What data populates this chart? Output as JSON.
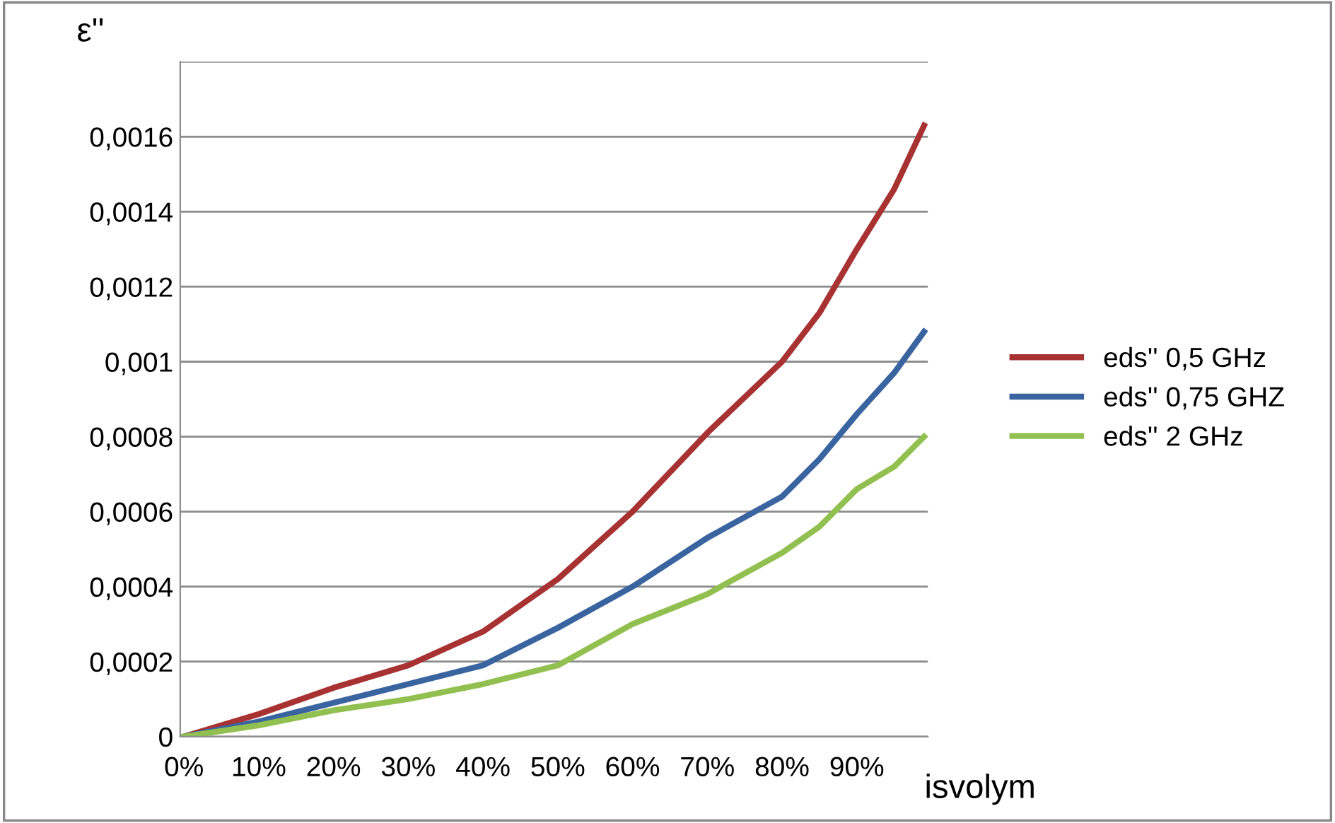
{
  "chart_data": {
    "type": "line",
    "ylabel": "ε''",
    "xlabel": "isvolym",
    "x": [
      0,
      10,
      20,
      30,
      40,
      50,
      60,
      70,
      80,
      85,
      90,
      95,
      99
    ],
    "series": [
      {
        "name": "eds'' 0,5 GHz",
        "color": "#a83232",
        "values": [
          0,
          6e-05,
          0.00013,
          0.00019,
          0.00028,
          0.00042,
          0.0006,
          0.00081,
          0.001,
          0.00113,
          0.0013,
          0.00146,
          0.00163
        ]
      },
      {
        "name": "eds'' 0,75 GHZ",
        "color": "#3a64a0",
        "values": [
          0,
          4e-05,
          9e-05,
          0.00014,
          0.00019,
          0.00029,
          0.0004,
          0.00053,
          0.00064,
          0.00074,
          0.00086,
          0.00097,
          0.00108
        ]
      },
      {
        "name": "eds'' 2 GHz",
        "color": "#92c050",
        "values": [
          0,
          3e-05,
          7e-05,
          0.0001,
          0.00014,
          0.00019,
          0.0003,
          0.00038,
          0.00049,
          0.00056,
          0.00066,
          0.00072,
          0.0008
        ]
      }
    ],
    "xlim": [
      -0.5,
      99.5
    ],
    "xticks": [
      {
        "value": 0,
        "label": "0%"
      },
      {
        "value": 10,
        "label": "10%"
      },
      {
        "value": 20,
        "label": "20%"
      },
      {
        "value": 30,
        "label": "30%"
      },
      {
        "value": 40,
        "label": "40%"
      },
      {
        "value": 50,
        "label": "50%"
      },
      {
        "value": 60,
        "label": "60%"
      },
      {
        "value": 70,
        "label": "70%"
      },
      {
        "value": 80,
        "label": "80%"
      },
      {
        "value": 90,
        "label": "90%"
      }
    ],
    "ylim": [
      0,
      0.0018
    ],
    "yticks": [
      {
        "value": 0,
        "label": "0"
      },
      {
        "value": 0.0002,
        "label": "0,0002"
      },
      {
        "value": 0.0004,
        "label": "0,0004"
      },
      {
        "value": 0.0006,
        "label": "0,0006"
      },
      {
        "value": 0.0008,
        "label": "0,0008"
      },
      {
        "value": 0.001,
        "label": "0,001"
      },
      {
        "value": 0.0012,
        "label": "0,0012"
      },
      {
        "value": 0.0014,
        "label": "0,0014"
      },
      {
        "value": 0.0016,
        "label": "0,0016"
      },
      {
        "value": 0.0018,
        "label": null
      }
    ],
    "grid": "y",
    "legend": "right",
    "marker": "none",
    "line_style": "solid"
  }
}
